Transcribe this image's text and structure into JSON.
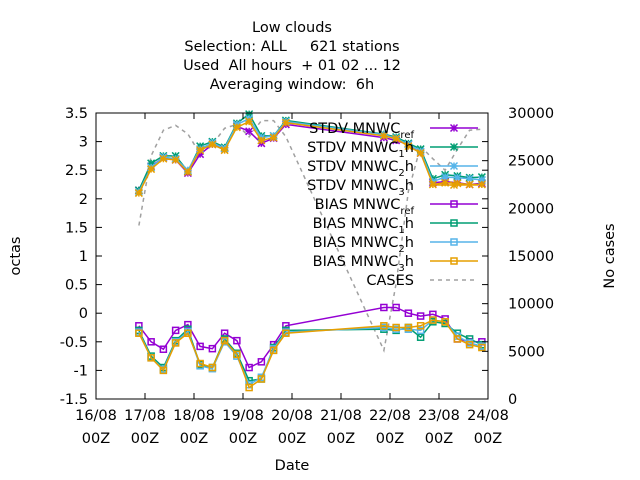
{
  "chart_data": {
    "type": "line",
    "title_lines": [
      "Low clouds",
      "Selection: ALL     621 stations",
      "Used  All hours  + 01 02 ... 12",
      "Averaging window:  6h"
    ],
    "xlabel": "Date",
    "ylabel": "octas",
    "y2label": "No cases",
    "xlim": [
      "2018-08-16 00Z",
      "2018-08-24 00Z"
    ],
    "ylim": [
      -1.5,
      3.5
    ],
    "y2lim": [
      0,
      30000
    ],
    "x_tick_labels": [
      {
        "date": "16/08",
        "hour": "00Z"
      },
      {
        "date": "17/08",
        "hour": "00Z"
      },
      {
        "date": "18/08",
        "hour": "00Z"
      },
      {
        "date": "19/08",
        "hour": "00Z"
      },
      {
        "date": "20/08",
        "hour": "00Z"
      },
      {
        "date": "21/08",
        "hour": "00Z"
      },
      {
        "date": "22/08",
        "hour": "00Z"
      },
      {
        "date": "23/08",
        "hour": "00Z"
      },
      {
        "date": "24/08",
        "hour": "00Z"
      }
    ],
    "y_tick_labels": [
      "-1.5",
      "-1",
      "-0.5",
      "0",
      "0.5",
      "1",
      "1.5",
      "2",
      "2.5",
      "3",
      "3.5"
    ],
    "y2_tick_labels": [
      "0",
      "5000",
      "10000",
      "15000",
      "20000",
      "25000",
      "30000"
    ],
    "legend_position": "top-right",
    "x_times": [
      "2018-08-16 21Z",
      "2018-08-17 03Z",
      "2018-08-17 09Z",
      "2018-08-17 15Z",
      "2018-08-17 21Z",
      "2018-08-18 03Z",
      "2018-08-18 09Z",
      "2018-08-18 15Z",
      "2018-08-18 21Z",
      "2018-08-19 03Z",
      "2018-08-19 09Z",
      "2018-08-19 15Z",
      "2018-08-19 21Z",
      "2018-08-21 21Z",
      "2018-08-22 03Z",
      "2018-08-22 09Z",
      "2018-08-22 15Z",
      "2018-08-22 21Z",
      "2018-08-23 03Z",
      "2018-08-23 09Z",
      "2018-08-23 15Z",
      "2018-08-23 21Z"
    ],
    "series": [
      {
        "name": "STDV MNWC_ref",
        "label_main": "STDV MNWC",
        "label_sub": "ref",
        "color": "#9400d3",
        "marker": "star",
        "dash": false,
        "values": [
          2.15,
          2.57,
          2.72,
          2.68,
          2.45,
          2.78,
          2.95,
          2.88,
          3.27,
          3.18,
          2.97,
          3.06,
          3.3,
          3.07,
          3.02,
          2.95,
          2.8,
          2.28,
          2.3,
          2.28,
          2.25,
          2.27
        ]
      },
      {
        "name": "STDV MNWC_1h",
        "label_main": "STDV MNWC",
        "label_sub": "1",
        "label_suffix": "h",
        "color": "#009e73",
        "marker": "star",
        "dash": false,
        "values": [
          2.15,
          2.62,
          2.75,
          2.75,
          2.48,
          2.92,
          3.0,
          2.9,
          3.32,
          3.48,
          3.1,
          3.1,
          3.37,
          3.13,
          3.08,
          2.97,
          2.87,
          2.35,
          2.42,
          2.4,
          2.37,
          2.38
        ]
      },
      {
        "name": "STDV MNWC_2h",
        "label_main": "STDV MNWC",
        "label_sub": "2",
        "label_suffix": "h",
        "color": "#56b4e9",
        "marker": "star",
        "dash": false,
        "values": [
          2.12,
          2.55,
          2.73,
          2.7,
          2.5,
          2.87,
          2.98,
          2.88,
          3.3,
          3.4,
          3.07,
          3.1,
          3.35,
          3.12,
          3.06,
          2.95,
          2.83,
          2.3,
          2.38,
          2.37,
          2.35,
          2.33
        ]
      },
      {
        "name": "STDV MNWC_3h",
        "label_main": "STDV MNWC",
        "label_sub": "3",
        "label_suffix": "h",
        "color": "#e69f00",
        "marker": "star",
        "dash": false,
        "values": [
          2.1,
          2.52,
          2.7,
          2.68,
          2.47,
          2.85,
          2.95,
          2.85,
          3.25,
          3.35,
          3.02,
          3.07,
          3.33,
          3.1,
          3.05,
          2.92,
          2.8,
          2.25,
          2.28,
          2.27,
          2.25,
          2.25
        ]
      },
      {
        "name": "BIAS MNWC_ref",
        "label_main": "BIAS MNWC",
        "label_sub": "ref",
        "color": "#9400d3",
        "marker": "square",
        "dash": false,
        "values": [
          -0.22,
          -0.5,
          -0.63,
          -0.3,
          -0.2,
          -0.58,
          -0.62,
          -0.35,
          -0.48,
          -0.95,
          -0.85,
          -0.55,
          -0.22,
          0.1,
          0.1,
          0.0,
          -0.05,
          -0.02,
          -0.1,
          -0.45,
          -0.5,
          -0.5
        ]
      },
      {
        "name": "BIAS MNWC_1h",
        "label_main": "BIAS MNWC",
        "label_sub": "1",
        "label_suffix": "h",
        "color": "#009e73",
        "marker": "square",
        "dash": false,
        "values": [
          -0.3,
          -0.75,
          -0.95,
          -0.48,
          -0.28,
          -0.9,
          -0.95,
          -0.45,
          -0.7,
          -1.18,
          -1.15,
          -0.6,
          -0.3,
          -0.28,
          -0.3,
          -0.25,
          -0.42,
          -0.15,
          -0.18,
          -0.35,
          -0.45,
          -0.55
        ]
      },
      {
        "name": "BIAS MNWC_2h",
        "label_main": "BIAS MNWC",
        "label_sub": "2",
        "label_suffix": "h",
        "color": "#56b4e9",
        "marker": "square",
        "dash": false,
        "values": [
          -0.33,
          -0.78,
          -0.98,
          -0.5,
          -0.32,
          -0.92,
          -0.97,
          -0.5,
          -0.75,
          -1.25,
          -1.12,
          -0.62,
          -0.33,
          -0.25,
          -0.28,
          -0.28,
          -0.3,
          -0.12,
          -0.15,
          -0.4,
          -0.52,
          -0.58
        ]
      },
      {
        "name": "BIAS MNWC_3h",
        "label_main": "BIAS MNWC",
        "label_sub": "3",
        "label_suffix": "h",
        "color": "#e69f00",
        "marker": "square",
        "dash": false,
        "values": [
          -0.35,
          -0.78,
          -1.0,
          -0.52,
          -0.35,
          -0.88,
          -0.95,
          -0.48,
          -0.72,
          -1.3,
          -1.15,
          -0.65,
          -0.35,
          -0.22,
          -0.25,
          -0.25,
          -0.22,
          -0.12,
          -0.15,
          -0.45,
          -0.55,
          -0.6
        ]
      }
    ],
    "cases": {
      "name": "CASES",
      "color": "#a0a0a0",
      "dash": true,
      "x": [
        "2018-08-16 21Z",
        "2018-08-17 03Z",
        "2018-08-17 09Z",
        "2018-08-17 15Z",
        "2018-08-17 21Z",
        "2018-08-18 03Z",
        "2018-08-18 09Z",
        "2018-08-18 15Z",
        "2018-08-18 21Z",
        "2018-08-19 03Z",
        "2018-08-19 09Z",
        "2018-08-19 15Z",
        "2018-08-19 21Z",
        "2018-08-21 21Z",
        "2018-08-22 03Z",
        "2018-08-22 09Z",
        "2018-08-22 15Z",
        "2018-08-22 21Z",
        "2018-08-23 03Z",
        "2018-08-23 09Z",
        "2018-08-23 15Z",
        "2018-08-23 21Z"
      ],
      "values": [
        18200,
        25500,
        28200,
        28700,
        27800,
        25700,
        26700,
        28400,
        28800,
        27500,
        29200,
        29200,
        27500,
        5100,
        12100,
        21800,
        26500,
        25200,
        24000,
        26200,
        28200,
        28300
      ]
    }
  }
}
